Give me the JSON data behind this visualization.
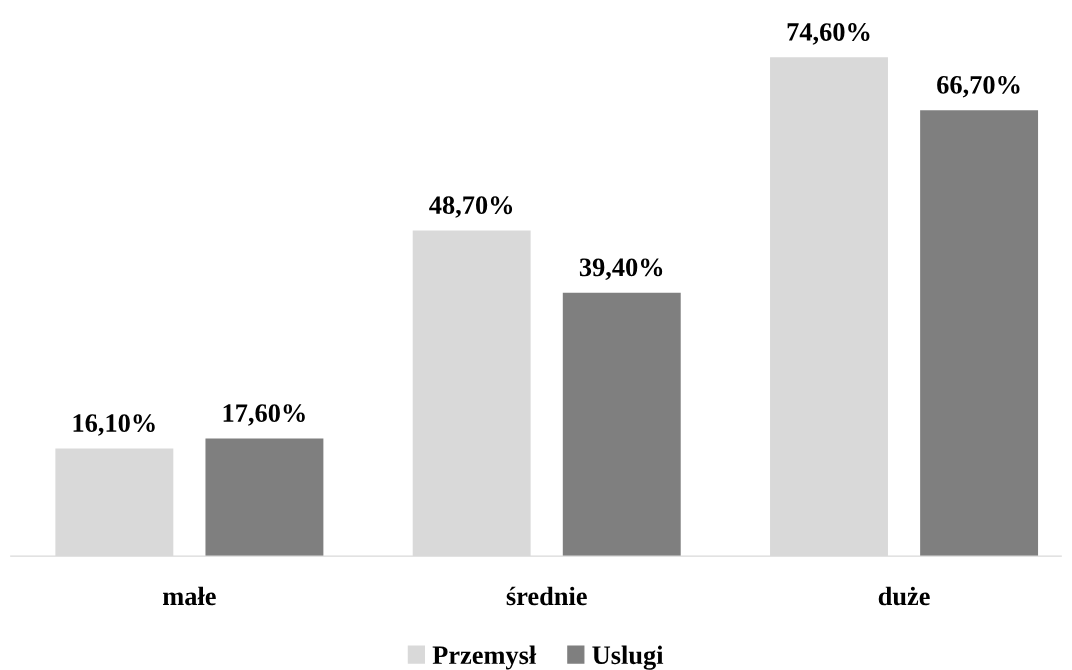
{
  "chart_data": {
    "type": "bar",
    "categories": [
      "małe",
      "średnie",
      "duże"
    ],
    "series": [
      {
        "name": "Przemysł",
        "color": "#d9d9d9",
        "values": [
          16.1,
          48.7,
          74.6
        ],
        "value_labels": [
          "16,10%",
          "48,70%",
          "74,60%"
        ]
      },
      {
        "name": "Uslugi",
        "color": "#7f7f7f",
        "values": [
          17.6,
          39.4,
          66.7
        ],
        "value_labels": [
          "17,60%",
          "39,40%",
          "66,70%"
        ]
      }
    ],
    "grid": false,
    "legend": "bottom"
  }
}
